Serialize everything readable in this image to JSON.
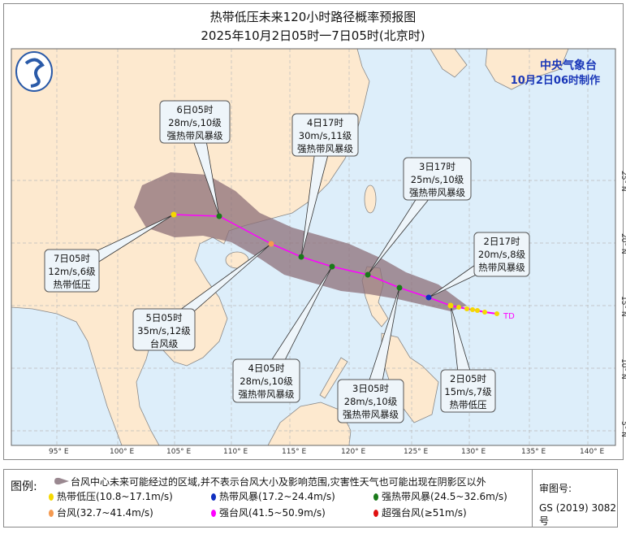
{
  "title": "热带低压未来120小时路径概率预报图",
  "subtitle": "2025年10月2日05时一7日05时(北京时)",
  "agency": "中央气象台",
  "issued": "10月2日06时制作",
  "map": {
    "lon_labels": [
      "95° E",
      "100° E",
      "105° E",
      "110° E",
      "115° E",
      "120° E",
      "125° E",
      "130° E",
      "135° E",
      "140° E"
    ],
    "lat_labels": [
      "25° N",
      "20° N",
      "15° N",
      "10° N",
      "5° N"
    ],
    "colors": {
      "land": "#fde9cf",
      "sea": "#ddeefa",
      "cone": "#8c6f78",
      "track": "#ff00ff"
    },
    "current_label": "TD",
    "forecast_points": [
      {
        "time": "2日05时",
        "wind": "15m/s,7级",
        "grade": "热带低压",
        "color": "#f5d800"
      },
      {
        "time": "2日17时",
        "wind": "20m/s,8级",
        "grade": "热带风暴级",
        "color": "#1030c0"
      },
      {
        "time": "3日05时",
        "wind": "28m/s,10级",
        "grade": "强热带风暴级",
        "color": "#1a7a1a"
      },
      {
        "time": "3日17时",
        "wind": "25m/s,10级",
        "grade": "强热带风暴级",
        "color": "#1a7a1a"
      },
      {
        "time": "4日05时",
        "wind": "28m/s,10级",
        "grade": "强热带风暴级",
        "color": "#1a7a1a"
      },
      {
        "time": "4日17时",
        "wind": "30m/s,11级",
        "grade": "强热带风暴级",
        "color": "#1a7a1a"
      },
      {
        "time": "5日05时",
        "wind": "35m/s,12级",
        "grade": "台风级",
        "color": "#f59a50"
      },
      {
        "time": "6日05时",
        "wind": "28m/s,10级",
        "grade": "强热带风暴级",
        "color": "#1a7a1a"
      },
      {
        "time": "7日05时",
        "wind": "12m/s,6级",
        "grade": "热带低压",
        "color": "#f5d800"
      }
    ]
  },
  "legend": {
    "label": "图例:",
    "cone_note": "台风中心未来可能经过的区域,并不表示台风大小及影响范围,灾害性天气也可能出现在阴影区以外",
    "categories": [
      {
        "name": "热带低压(10.8~17.1m/s)",
        "color": "#f5d800"
      },
      {
        "name": "热带风暴(17.2~24.4m/s)",
        "color": "#1030c0"
      },
      {
        "name": "强热带风暴(24.5~32.6m/s)",
        "color": "#1a7a1a"
      },
      {
        "name": "台风(32.7~41.4m/s)",
        "color": "#f59a50"
      },
      {
        "name": "强台风(41.5~50.9m/s)",
        "color": "#ff00ff"
      },
      {
        "name": "超强台风(≥51m/s)",
        "color": "#e01010"
      }
    ],
    "approval_label": "审图号:",
    "approval_no": "GS (2019) 3082号"
  }
}
